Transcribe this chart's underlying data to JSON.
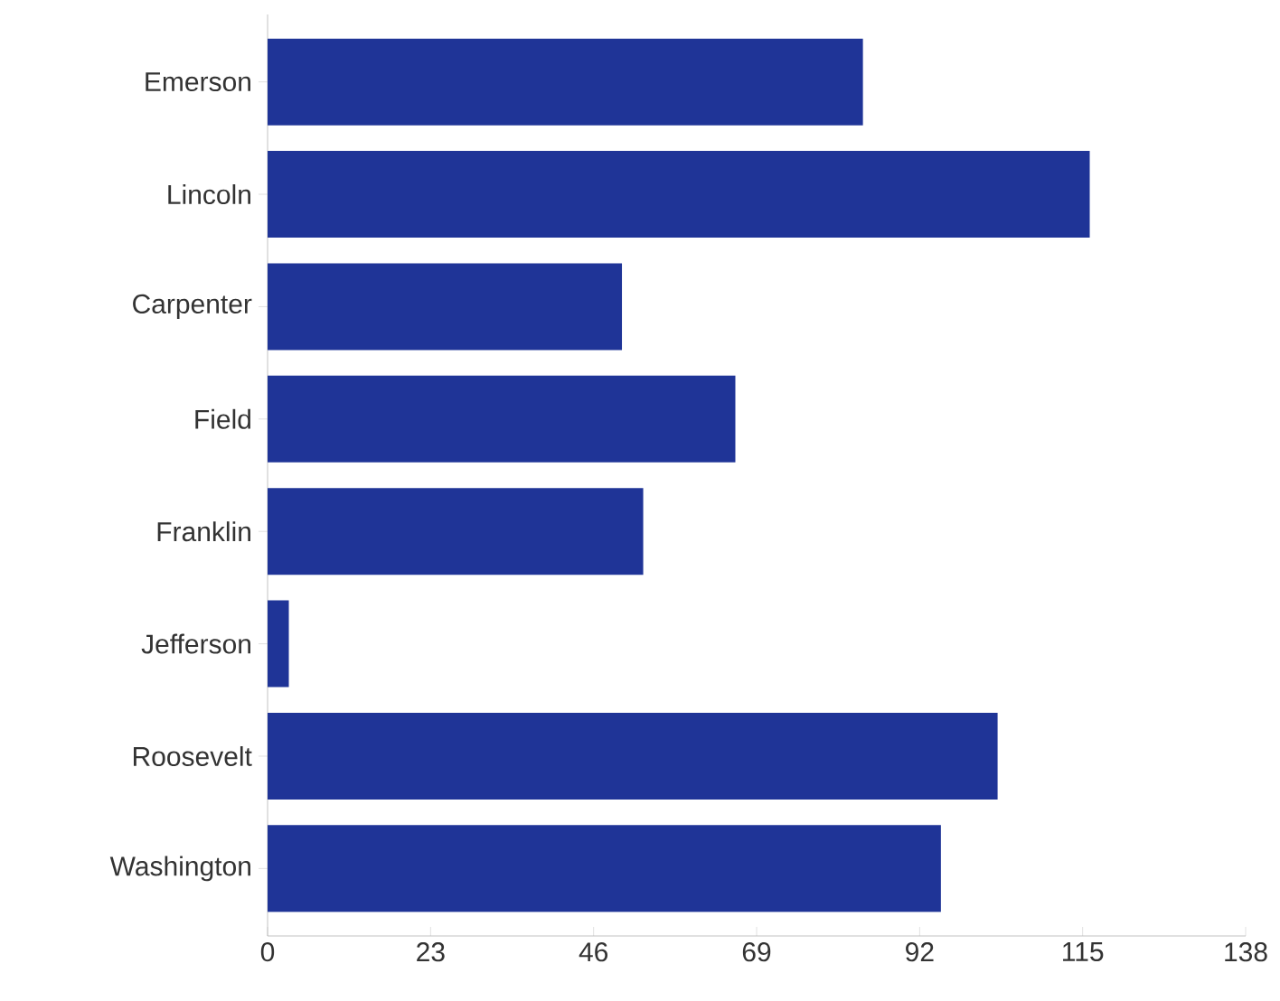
{
  "chart_data": {
    "type": "bar",
    "orientation": "horizontal",
    "categories": [
      "Emerson",
      "Lincoln",
      "Carpenter",
      "Field",
      "Franklin",
      "Jefferson",
      "Roosevelt",
      "Washington"
    ],
    "values": [
      84,
      116,
      50,
      66,
      53,
      3,
      103,
      95
    ],
    "color": "#1f3497",
    "xlim": [
      0,
      138
    ],
    "xticks": [
      0,
      23,
      46,
      69,
      92,
      115,
      138
    ]
  }
}
